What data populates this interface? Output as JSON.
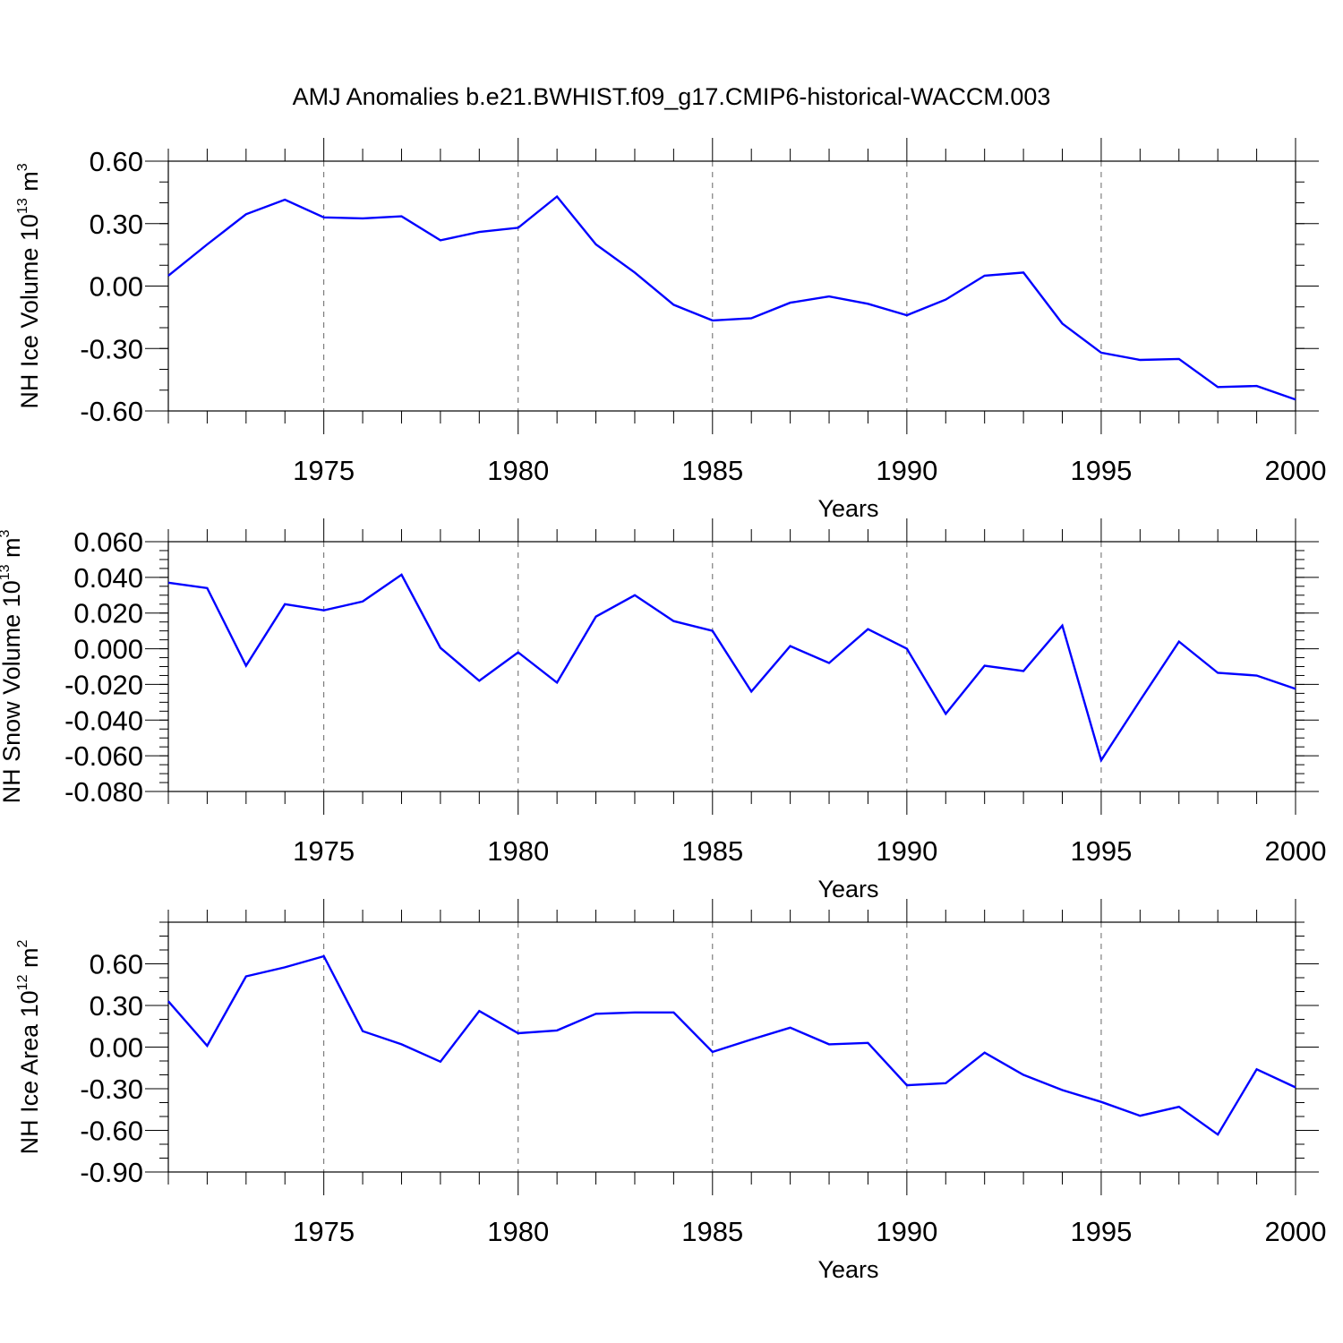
{
  "figure_title": "AMJ Anomalies b.e21.BWHIST.f09_g17.CMIP6-historical-WACCM.003",
  "chart_data": [
    {
      "type": "line",
      "title": "",
      "xlabel": "Years",
      "ylabel": {
        "prefix": "NH Ice Volume 10",
        "exp": "13",
        "mid": " m",
        "unit_exp": "3"
      },
      "xlim": [
        1971,
        2000
      ],
      "ylim": [
        -0.6,
        0.6
      ],
      "x_ticks": [
        1975,
        1980,
        1985,
        1990,
        1995,
        2000
      ],
      "y_ticks": [
        -0.6,
        -0.3,
        0.0,
        0.3,
        0.6
      ],
      "y_tick_labels": [
        "-0.60",
        "-0.30",
        "0.00",
        "0.30",
        "0.60"
      ],
      "y_minor_step": 0.1,
      "grid": "dashed vertical at major x ticks",
      "color": "#0000ff",
      "x": [
        1971,
        1972,
        1973,
        1974,
        1975,
        1976,
        1977,
        1978,
        1979,
        1980,
        1981,
        1982,
        1983,
        1984,
        1985,
        1986,
        1987,
        1988,
        1989,
        1990,
        1991,
        1992,
        1993,
        1994,
        1995,
        1996,
        1997,
        1998,
        1999,
        2000
      ],
      "values": [
        0.05,
        0.2,
        0.345,
        0.415,
        0.33,
        0.325,
        0.335,
        0.22,
        0.26,
        0.28,
        0.43,
        0.2,
        0.065,
        -0.09,
        -0.165,
        -0.155,
        -0.08,
        -0.05,
        -0.085,
        -0.14,
        -0.065,
        0.05,
        0.065,
        -0.18,
        -0.32,
        -0.355,
        -0.35,
        -0.485,
        -0.48,
        -0.545
      ]
    },
    {
      "type": "line",
      "title": "",
      "xlabel": "Years",
      "ylabel": {
        "prefix": "NH Snow Volume 10",
        "exp": "13",
        "mid": " m",
        "unit_exp": "3"
      },
      "xlim": [
        1971,
        2000
      ],
      "ylim": [
        -0.08,
        0.06
      ],
      "x_ticks": [
        1975,
        1980,
        1985,
        1990,
        1995,
        2000
      ],
      "y_ticks": [
        -0.08,
        -0.06,
        -0.04,
        -0.02,
        0.0,
        0.02,
        0.04,
        0.06
      ],
      "y_tick_labels": [
        "-0.080",
        "-0.060",
        "-0.040",
        "-0.020",
        "0.000",
        "0.020",
        "0.040",
        "0.060"
      ],
      "y_minor_step": 0.005,
      "grid": "dashed vertical at major x ticks",
      "color": "#0000ff",
      "x": [
        1971,
        1972,
        1973,
        1974,
        1975,
        1976,
        1977,
        1978,
        1979,
        1980,
        1981,
        1982,
        1983,
        1984,
        1985,
        1986,
        1987,
        1988,
        1989,
        1990,
        1991,
        1992,
        1993,
        1994,
        1995,
        1996,
        1997,
        1998,
        1999,
        2000
      ],
      "values": [
        0.037,
        0.034,
        -0.0095,
        0.025,
        0.0215,
        0.0265,
        0.0415,
        0.0005,
        -0.018,
        -0.002,
        -0.019,
        0.018,
        0.03,
        0.0155,
        0.01,
        -0.024,
        0.0015,
        -0.008,
        0.011,
        0.0,
        -0.0365,
        -0.0095,
        -0.0125,
        0.013,
        -0.0625,
        -0.029,
        0.004,
        -0.0135,
        -0.015,
        -0.0225
      ]
    },
    {
      "type": "line",
      "title": "",
      "xlabel": "Years",
      "ylabel": {
        "prefix": "NH Ice Area 10",
        "exp": "12",
        "mid": " m",
        "unit_exp": "2"
      },
      "xlim": [
        1971,
        2000
      ],
      "ylim": [
        -0.9,
        0.9
      ],
      "x_ticks": [
        1975,
        1980,
        1985,
        1990,
        1995,
        2000
      ],
      "y_ticks": [
        -0.9,
        -0.6,
        -0.3,
        0.0,
        0.3,
        0.6
      ],
      "y_tick_labels": [
        "-0.90",
        "-0.60",
        "-0.30",
        "0.00",
        "0.30",
        "0.60"
      ],
      "y_minor_step": 0.1,
      "grid": "dashed vertical at major x ticks",
      "color": "#0000ff",
      "x": [
        1971,
        1972,
        1973,
        1974,
        1975,
        1976,
        1977,
        1978,
        1979,
        1980,
        1981,
        1982,
        1983,
        1984,
        1985,
        1986,
        1987,
        1988,
        1989,
        1990,
        1991,
        1992,
        1993,
        1994,
        1995,
        1996,
        1997,
        1998,
        1999,
        2000
      ],
      "values": [
        0.33,
        0.01,
        0.51,
        0.575,
        0.655,
        0.115,
        0.02,
        -0.105,
        0.26,
        0.1,
        0.12,
        0.24,
        0.25,
        0.25,
        -0.035,
        0.055,
        0.14,
        0.02,
        0.03,
        -0.275,
        -0.26,
        -0.04,
        -0.2,
        -0.31,
        -0.395,
        -0.495,
        -0.43,
        -0.63,
        -0.16,
        -0.29
      ]
    }
  ]
}
